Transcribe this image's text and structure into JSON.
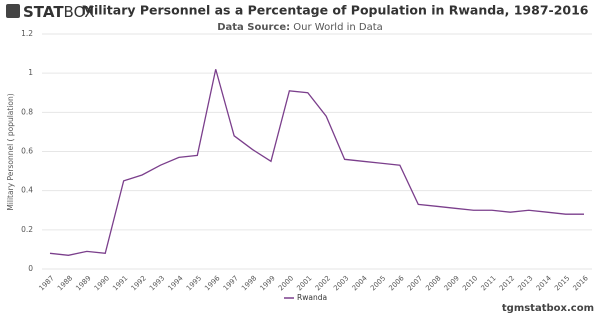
{
  "brand": {
    "first": "STAT",
    "second": "BOX"
  },
  "footer": "tgmstatbox.com",
  "chart_data": {
    "type": "line",
    "title": "Military Personnel as a Percentage of Population in Rwanda, 1987-2016",
    "subtitle_label": "Data Source:",
    "subtitle": "Our World in Data",
    "y_label": "Military Personnel ( population)",
    "categories": [
      "1987",
      "1988",
      "1989",
      "1990",
      "1991",
      "1992",
      "1993",
      "1994",
      "1995",
      "1996",
      "1997",
      "1998",
      "1999",
      "2000",
      "2001",
      "2002",
      "2003",
      "2004",
      "2005",
      "2006",
      "2007",
      "2008",
      "2009",
      "2010",
      "2011",
      "2012",
      "2013",
      "2014",
      "2015",
      "2016"
    ],
    "series": [
      {
        "name": "Rwanda",
        "color": "#7b3f8c",
        "values": [
          0.08,
          0.07,
          0.09,
          0.08,
          0.45,
          0.48,
          0.53,
          0.57,
          0.58,
          1.02,
          0.68,
          0.61,
          0.55,
          0.91,
          0.9,
          0.78,
          0.56,
          0.55,
          0.54,
          0.53,
          0.33,
          0.32,
          0.31,
          0.3,
          0.3,
          0.29,
          0.3,
          0.29,
          0.28,
          0.28
        ]
      }
    ],
    "ylim": [
      0,
      1.2
    ],
    "yticks": [
      0,
      0.2,
      0.4,
      0.6,
      0.8,
      1,
      1.2
    ],
    "grid": true,
    "legend": "bottom"
  }
}
